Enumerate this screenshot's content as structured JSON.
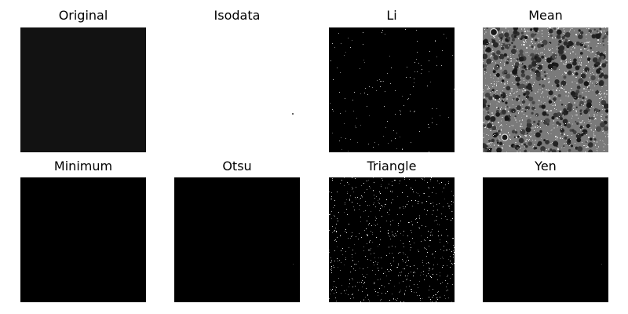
{
  "figure": {
    "panels": [
      {
        "title": "Original",
        "variant": "uniform",
        "fill": "#121212"
      },
      {
        "title": "Isodata",
        "variant": "white-speck",
        "fill": "#ffffff"
      },
      {
        "title": "Li",
        "variant": "sparse-dots",
        "fill": "#000000"
      },
      {
        "title": "Mean",
        "variant": "texture",
        "fill": "#7a7a7a"
      },
      {
        "title": "Minimum",
        "variant": "uniform",
        "fill": "#000000"
      },
      {
        "title": "Otsu",
        "variant": "dark-speck",
        "fill": "#000000"
      },
      {
        "title": "Triangle",
        "variant": "dense-dots",
        "fill": "#000000"
      },
      {
        "title": "Yen",
        "variant": "dark-speck",
        "fill": "#000000"
      }
    ]
  }
}
